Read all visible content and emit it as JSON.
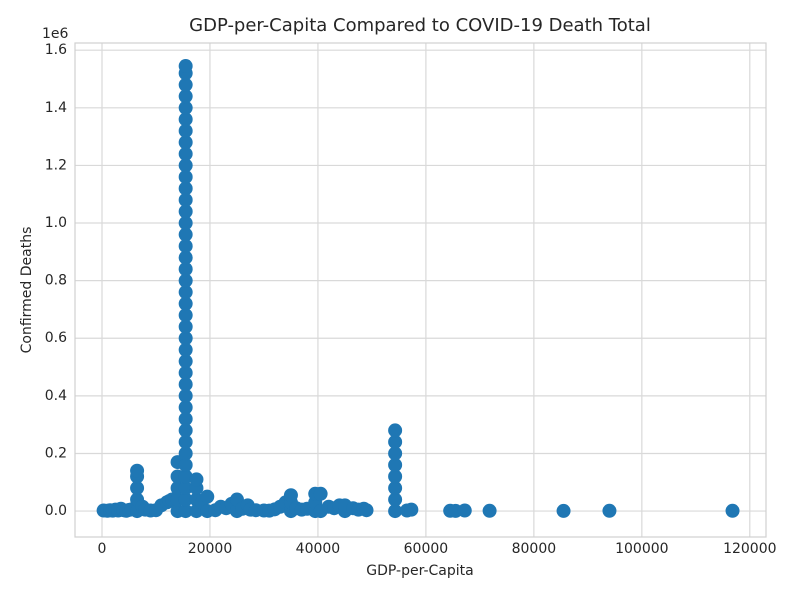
{
  "chart_data": {
    "type": "scatter",
    "title": "GDP-per-Capita Compared to COVID-19 Death Total",
    "x_label": "GDP-per-Capita",
    "y_label": "Confirmed Deaths",
    "y_offset_label": "1e6",
    "color": "#1f77b4",
    "grid": true,
    "xlim": [
      -5000,
      123000
    ],
    "ylim": [
      -90000,
      1625000
    ],
    "xticks": [
      0,
      20000,
      40000,
      60000,
      80000,
      100000,
      120000
    ],
    "yticks": [
      {
        "value": 0,
        "label": "0.0"
      },
      {
        "value": 200000,
        "label": "0.2"
      },
      {
        "value": 400000,
        "label": "0.4"
      },
      {
        "value": 600000,
        "label": "0.6"
      },
      {
        "value": 800000,
        "label": "0.8"
      },
      {
        "value": 1000000,
        "label": "1.0"
      },
      {
        "value": 1200000,
        "label": "1.2"
      },
      {
        "value": 1400000,
        "label": "1.4"
      },
      {
        "value": 1600000,
        "label": "1.6"
      }
    ],
    "x": [
      300,
      1000,
      1500,
      2000,
      2500,
      3000,
      3500,
      4000,
      4500,
      5000,
      5500,
      6500,
      6500,
      6500,
      6500,
      6500,
      7500,
      8000,
      9000,
      10000,
      11000,
      12000,
      12500,
      13000,
      14000,
      14000,
      14000,
      14000,
      14000,
      15500,
      15500,
      15500,
      15500,
      15500,
      15500,
      15500,
      15500,
      15500,
      15500,
      15500,
      15500,
      15500,
      15500,
      15500,
      15500,
      15500,
      15500,
      15500,
      15500,
      15500,
      15500,
      15500,
      15500,
      15500,
      15500,
      15500,
      15500,
      15500,
      15500,
      15500,
      15500,
      15500,
      15500,
      15500,
      15500,
      15500,
      15500,
      15500,
      15500,
      17500,
      17500,
      17500,
      17500,
      18500,
      19500,
      19500,
      21000,
      22000,
      23000,
      24000,
      25000,
      25000,
      26000,
      27000,
      27500,
      28500,
      30000,
      31000,
      32000,
      33000,
      34000,
      35000,
      35000,
      35000,
      36000,
      37000,
      38000,
      39500,
      39500,
      39500,
      40500,
      40500,
      42000,
      43000,
      44000,
      45000,
      45000,
      46500,
      47500,
      48500,
      49000,
      54300,
      54300,
      54300,
      54300,
      54300,
      54300,
      54300,
      54300,
      56500,
      57300,
      64500,
      65500,
      67200,
      71800,
      85500,
      94000,
      116800
    ],
    "values": [
      2000,
      1000,
      3000,
      1500,
      5000,
      2000,
      8000,
      3000,
      1000,
      4000,
      6000,
      0,
      40000,
      80000,
      120000,
      140000,
      15000,
      5000,
      2000,
      3000,
      20000,
      30000,
      35000,
      40000,
      0,
      40000,
      80000,
      120000,
      170000,
      0,
      40000,
      80000,
      120000,
      160000,
      200000,
      240000,
      280000,
      320000,
      360000,
      400000,
      440000,
      480000,
      520000,
      560000,
      600000,
      640000,
      680000,
      720000,
      760000,
      800000,
      840000,
      880000,
      920000,
      960000,
      1000000,
      1040000,
      1080000,
      1120000,
      1160000,
      1200000,
      1240000,
      1280000,
      1320000,
      1360000,
      1400000,
      1440000,
      1480000,
      1520000,
      1545000,
      0,
      40000,
      80000,
      110000,
      30000,
      0,
      50000,
      3000,
      15000,
      10000,
      25000,
      0,
      40000,
      8000,
      20000,
      5000,
      3000,
      2000,
      1500,
      6000,
      15000,
      30000,
      0,
      30000,
      55000,
      10000,
      5000,
      8000,
      0,
      30000,
      60000,
      0,
      60000,
      15000,
      10000,
      20000,
      0,
      20000,
      10000,
      5000,
      8000,
      3000,
      0,
      40000,
      80000,
      120000,
      160000,
      200000,
      240000,
      280000,
      2000,
      5000,
      1000,
      500,
      2000,
      1000,
      500,
      1000,
      1000
    ]
  }
}
